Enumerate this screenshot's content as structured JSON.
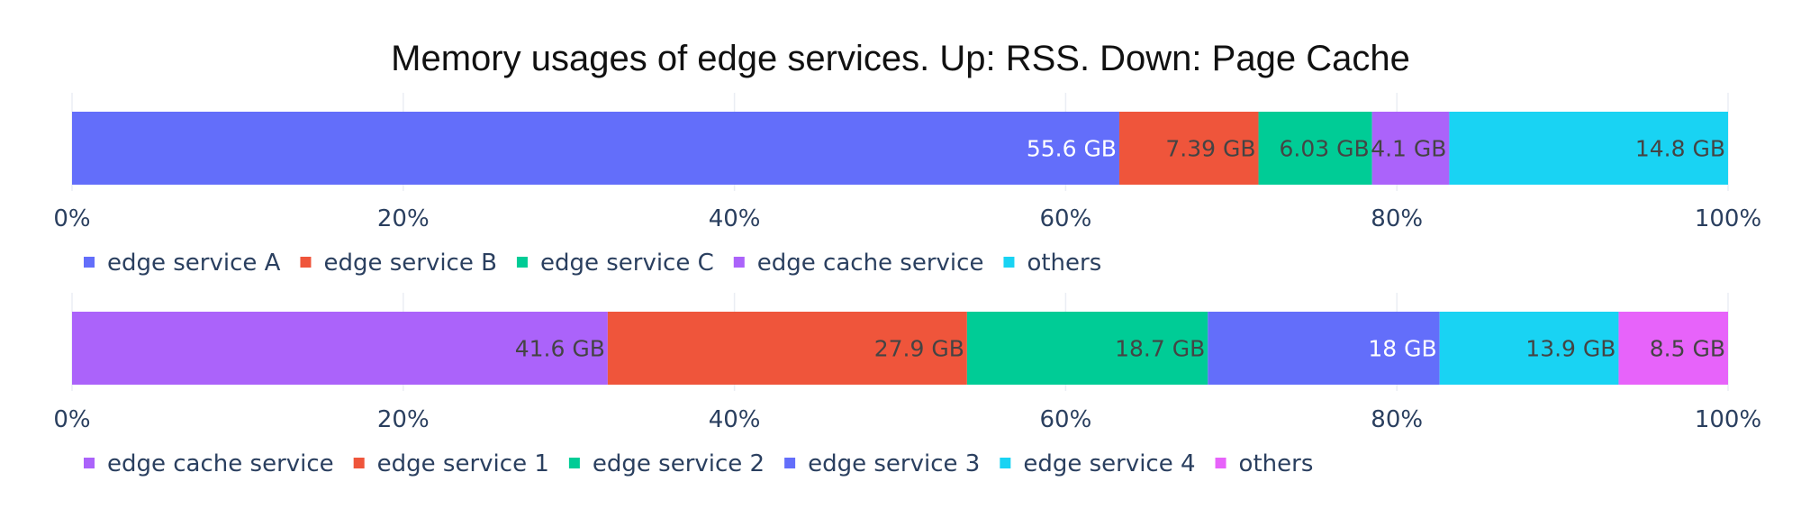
{
  "chart_data": {
    "type": "bar",
    "orientation": "horizontal-stacked-100%",
    "title": "Memory usages of edge services. Up: RSS. Down: Page Cache",
    "charts": [
      {
        "name": "RSS",
        "xlim": [
          0,
          100
        ],
        "ticks": [
          "0%",
          "20%",
          "40%",
          "60%",
          "80%",
          "100%"
        ],
        "grid": true,
        "legend_position": "bottom-left",
        "series": [
          {
            "name": "edge service A",
            "value": 55.6,
            "label": "55.6 GB",
            "color": "#636efa",
            "label_color": "#ffffff"
          },
          {
            "name": "edge service B",
            "value": 7.39,
            "label": "7.39 GB",
            "color": "#ef553b",
            "label_color": "#444444"
          },
          {
            "name": "edge service C",
            "value": 6.03,
            "label": "6.03 GB",
            "color": "#00cc96",
            "label_color": "#444444"
          },
          {
            "name": "edge cache service",
            "value": 4.1,
            "label": "4.1 GB",
            "color": "#ab63fa",
            "label_color": "#444444"
          },
          {
            "name": "others",
            "value": 14.8,
            "label": "14.8 GB",
            "color": "#19d3f3",
            "label_color": "#444444"
          }
        ]
      },
      {
        "name": "Page Cache",
        "xlim": [
          0,
          100
        ],
        "ticks": [
          "0%",
          "20%",
          "40%",
          "60%",
          "80%",
          "100%"
        ],
        "grid": true,
        "legend_position": "bottom-left",
        "series": [
          {
            "name": "edge cache service",
            "value": 41.6,
            "label": "41.6 GB",
            "color": "#ab63fa",
            "label_color": "#444444"
          },
          {
            "name": "edge service 1",
            "value": 27.9,
            "label": "27.9 GB",
            "color": "#ef553b",
            "label_color": "#444444"
          },
          {
            "name": "edge service 2",
            "value": 18.7,
            "label": "18.7 GB",
            "color": "#00cc96",
            "label_color": "#444444"
          },
          {
            "name": "edge service 3",
            "value": 18,
            "label": "18 GB",
            "color": "#636efa",
            "label_color": "#ffffff"
          },
          {
            "name": "edge service 4",
            "value": 13.9,
            "label": "13.9 GB",
            "color": "#19d3f3",
            "label_color": "#444444"
          },
          {
            "name": "others",
            "value": 8.5,
            "label": "8.5 GB",
            "color": "#e763fa",
            "label_color": "#444444"
          }
        ]
      }
    ]
  }
}
